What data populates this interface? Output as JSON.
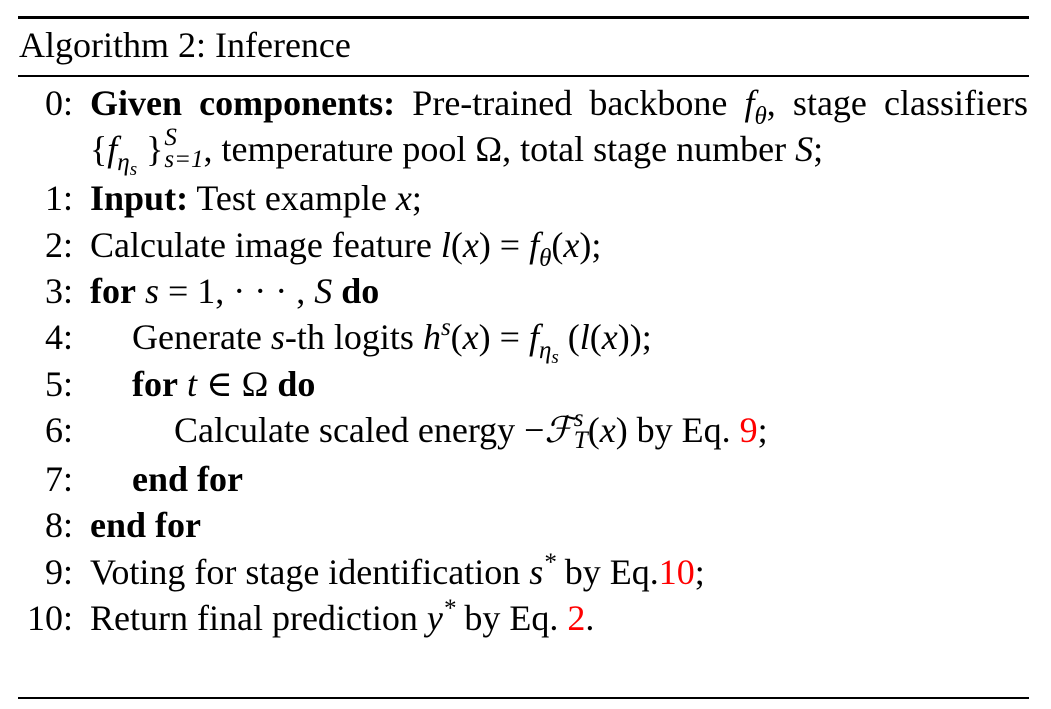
{
  "title": "Algorithm 2: Inference",
  "lines": [
    {
      "num": "0:",
      "indent": 0,
      "justify": true,
      "segs": [
        {
          "t": "Given components:",
          "k": "b"
        },
        {
          "t": " Pre-trained backbone ",
          "k": "n"
        },
        {
          "t": "f",
          "k": "i"
        },
        {
          "t": "θ",
          "k": "sub"
        },
        {
          "t": ", stage classifiers ",
          "k": "n"
        },
        {
          "t": "{",
          "k": "n"
        },
        {
          "t": "f",
          "k": "i"
        },
        {
          "t": "η",
          "k": "sub"
        },
        {
          "t": "s",
          "k": "subsub"
        },
        {
          "t": " }",
          "k": "n"
        },
        {
          "k": "stack",
          "sup": "S",
          "sub": "s=1"
        },
        {
          "t": ", temperature pool ",
          "k": "n"
        },
        {
          "t": "Ω",
          "k": "n"
        },
        {
          "t": ", total stage number ",
          "k": "n"
        },
        {
          "t": "S",
          "k": "i"
        },
        {
          "t": ";",
          "k": "n"
        }
      ]
    },
    {
      "num": "1:",
      "indent": 0,
      "segs": [
        {
          "t": "Input:",
          "k": "b"
        },
        {
          "t": " Test example ",
          "k": "n"
        },
        {
          "t": "x",
          "k": "i"
        },
        {
          "t": ";",
          "k": "n"
        }
      ]
    },
    {
      "num": "2:",
      "indent": 0,
      "segs": [
        {
          "t": "Calculate image feature ",
          "k": "n"
        },
        {
          "t": "l",
          "k": "i"
        },
        {
          "t": "(",
          "k": "n"
        },
        {
          "t": "x",
          "k": "i"
        },
        {
          "t": ") = ",
          "k": "n"
        },
        {
          "t": "f",
          "k": "i"
        },
        {
          "t": "θ",
          "k": "sub"
        },
        {
          "t": "(",
          "k": "n"
        },
        {
          "t": "x",
          "k": "i"
        },
        {
          "t": ");",
          "k": "n"
        }
      ]
    },
    {
      "num": "3:",
      "indent": 0,
      "segs": [
        {
          "t": "for",
          "k": "b"
        },
        {
          "t": " ",
          "k": "n"
        },
        {
          "t": "s",
          "k": "i"
        },
        {
          "t": " = 1, · · · , ",
          "k": "n"
        },
        {
          "t": "S",
          "k": "i"
        },
        {
          "t": " ",
          "k": "n"
        },
        {
          "t": "do",
          "k": "b"
        }
      ]
    },
    {
      "num": "4:",
      "indent": 1,
      "segs": [
        {
          "t": "Generate ",
          "k": "n"
        },
        {
          "t": "s",
          "k": "i"
        },
        {
          "t": "-th logits ",
          "k": "n"
        },
        {
          "t": "h",
          "k": "i"
        },
        {
          "t": "s",
          "k": "sup"
        },
        {
          "t": "(",
          "k": "n"
        },
        {
          "t": "x",
          "k": "i"
        },
        {
          "t": ") = ",
          "k": "n"
        },
        {
          "t": "f",
          "k": "i"
        },
        {
          "t": "η",
          "k": "sub"
        },
        {
          "t": "s",
          "k": "subsub"
        },
        {
          "t": " (",
          "k": "n"
        },
        {
          "t": "l",
          "k": "i"
        },
        {
          "t": "(",
          "k": "n"
        },
        {
          "t": "x",
          "k": "i"
        },
        {
          "t": "));",
          "k": "n"
        }
      ]
    },
    {
      "num": "5:",
      "indent": 1,
      "segs": [
        {
          "t": "for",
          "k": "b"
        },
        {
          "t": " ",
          "k": "n"
        },
        {
          "t": "t",
          "k": "i"
        },
        {
          "t": " ∈ Ω ",
          "k": "n"
        },
        {
          "t": "do",
          "k": "b"
        }
      ]
    },
    {
      "num": "6:",
      "indent": 2,
      "segs": [
        {
          "t": "Calculate scaled energy −",
          "k": "n"
        },
        {
          "t": "ℱ",
          "k": "i"
        },
        {
          "k": "stack",
          "sup": "s",
          "sub": "T"
        },
        {
          "t": "(",
          "k": "n"
        },
        {
          "t": "x",
          "k": "i"
        },
        {
          "t": ") by Eq. ",
          "k": "n"
        },
        {
          "t": "9",
          "k": "r"
        },
        {
          "t": ";",
          "k": "n"
        }
      ]
    },
    {
      "num": "7:",
      "indent": 1,
      "segs": [
        {
          "t": "end for",
          "k": "b"
        }
      ]
    },
    {
      "num": "8:",
      "indent": 0,
      "segs": [
        {
          "t": "end for",
          "k": "b"
        }
      ]
    },
    {
      "num": "9:",
      "indent": 0,
      "segs": [
        {
          "t": "Voting for stage identification ",
          "k": "n"
        },
        {
          "t": "s",
          "k": "i"
        },
        {
          "t": "*",
          "k": "sup"
        },
        {
          "t": " by Eq.",
          "k": "n"
        },
        {
          "t": "10",
          "k": "r"
        },
        {
          "t": ";",
          "k": "n"
        }
      ]
    },
    {
      "num": "10:",
      "indent": 0,
      "segs": [
        {
          "t": "Return final prediction ",
          "k": "n"
        },
        {
          "t": "y",
          "k": "i"
        },
        {
          "t": "*",
          "k": "sup"
        },
        {
          "t": " by Eq. ",
          "k": "n"
        },
        {
          "t": "2",
          "k": "r"
        },
        {
          "t": ".",
          "k": "n"
        }
      ]
    }
  ],
  "colors": {
    "link": "#ff0000",
    "text": "#000000"
  }
}
